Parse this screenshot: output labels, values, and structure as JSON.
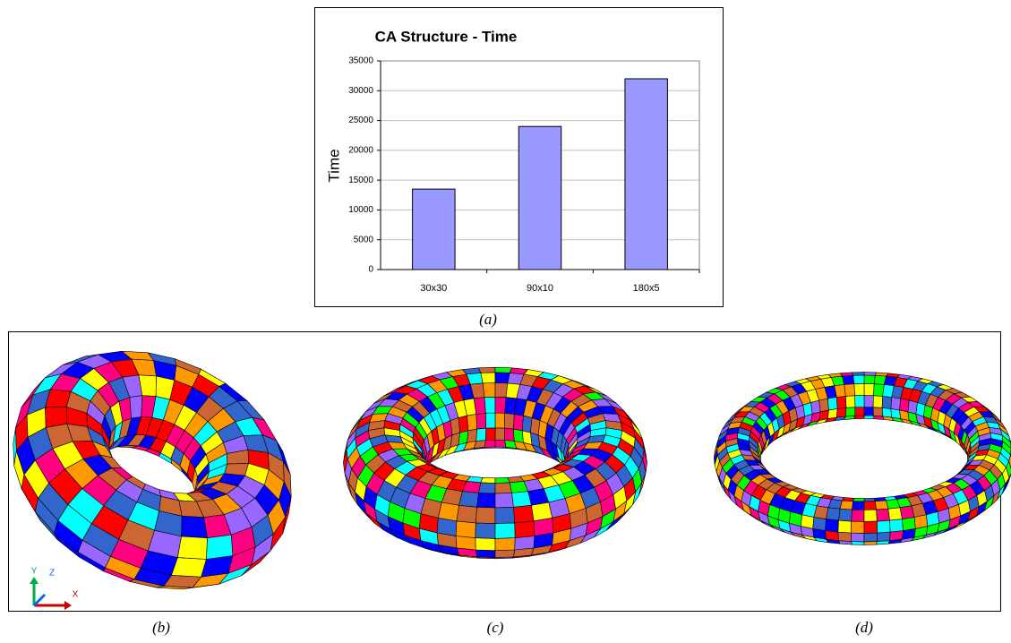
{
  "chart_data": {
    "type": "bar",
    "title": "CA Structure - Time",
    "y_label": "Time",
    "categories": [
      "30x30",
      "90x10",
      "180x5"
    ],
    "values": [
      13500,
      24000,
      32000
    ],
    "color": "#9999ff",
    "ylim": [
      0,
      35000
    ],
    "yticks": [
      0,
      5000,
      10000,
      15000,
      20000,
      25000,
      30000,
      35000
    ],
    "grid": true
  },
  "captions": [
    "(a)",
    "(b)",
    "(c)",
    "(d)"
  ],
  "axis_triad": {
    "y": "Y",
    "z": "Z",
    "x": "X"
  }
}
